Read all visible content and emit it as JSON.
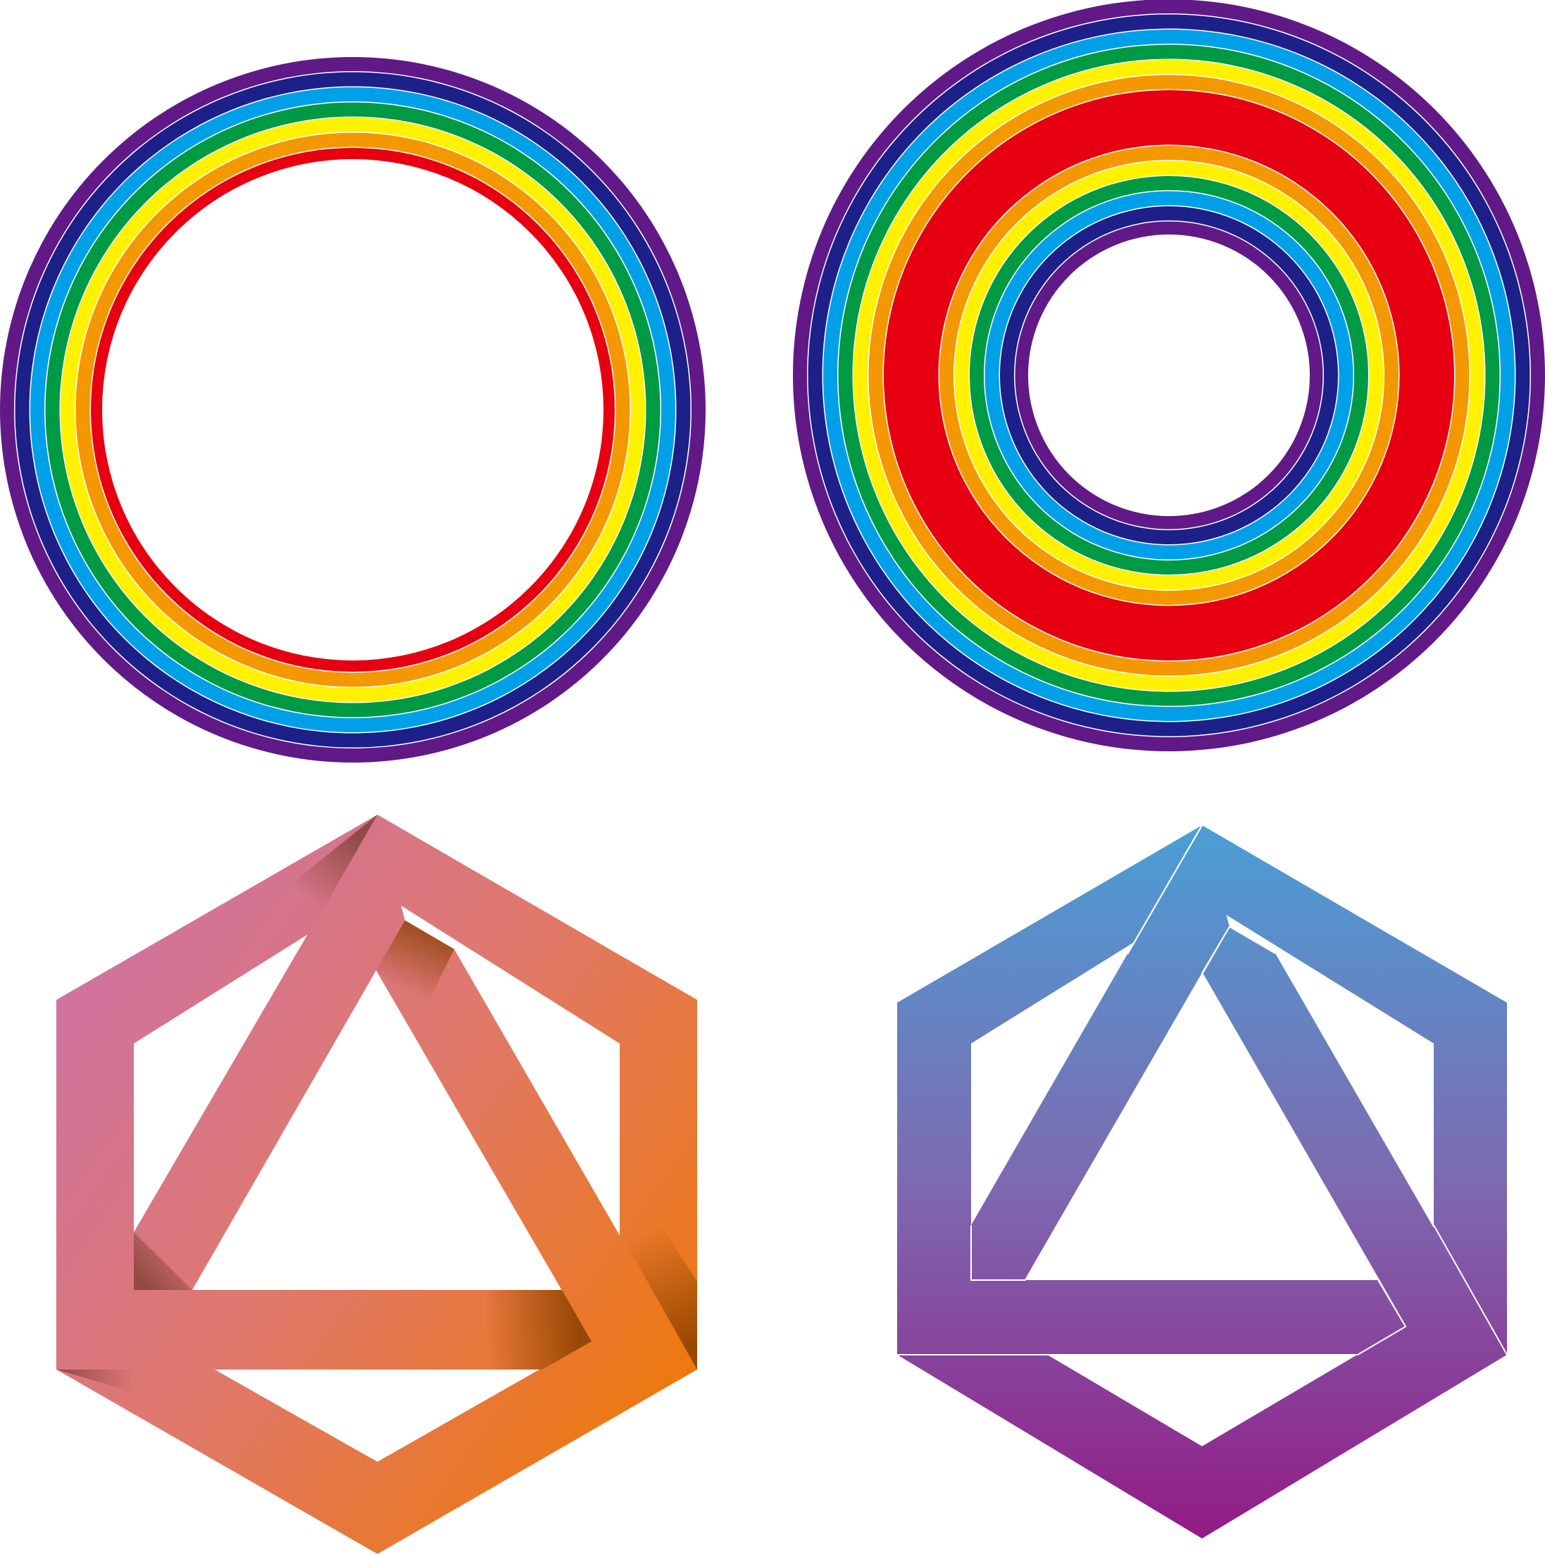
{
  "colors": {
    "rainbow": [
      "#e60012",
      "#f39800",
      "#fff100",
      "#009944",
      "#00a0e9",
      "#1d2088",
      "#601986"
    ],
    "gap": "#ffffff",
    "background": "#ffffff",
    "warm_gradient": {
      "start": "#cd72a7",
      "mid": "#e0786c",
      "end": "#ee780e",
      "shadow": "#7a3b2e",
      "shadow_dark": "#8a3f00"
    },
    "cool_gradient": {
      "top": "#4a9fd6",
      "middle": "#7d6ab0",
      "bottom": "#931b86",
      "edge": "#ffffff"
    }
  },
  "figures": [
    {
      "name": "rainbow-ring-thin",
      "description": ""
    },
    {
      "name": "rainbow-ring-double",
      "description": ""
    },
    {
      "name": "impossible-hexagon-warm",
      "description": ""
    },
    {
      "name": "impossible-hexagon-cool",
      "description": ""
    }
  ]
}
